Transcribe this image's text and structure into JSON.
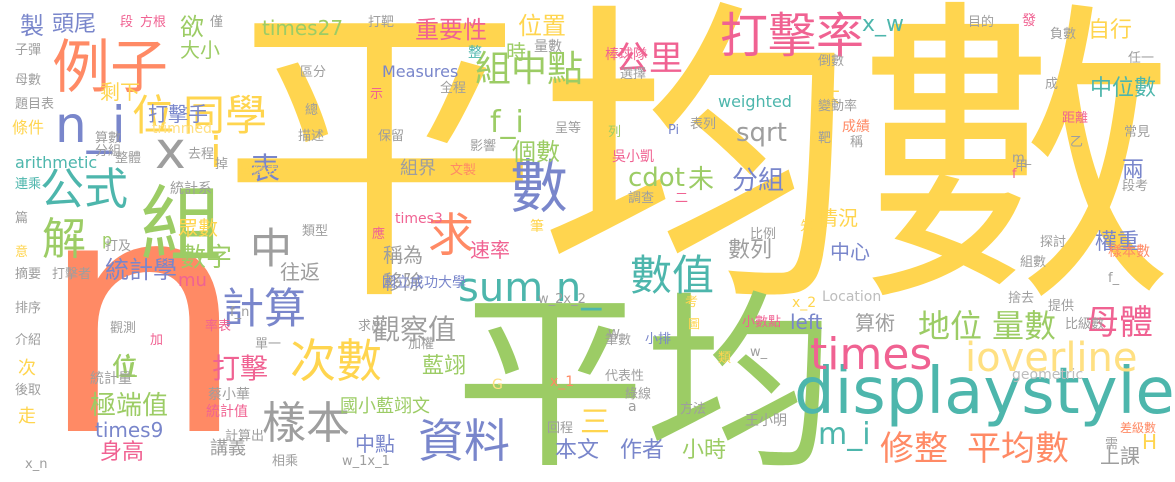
{
  "words": [
    {
      "text": "平均數",
      "color": "#FFD54F"
    },
    {
      "text": "n",
      "color": "#FF8A65"
    },
    {
      "text": "平均",
      "color": "#9CCC65"
    },
    {
      "text": "displaystyle",
      "color": "#4DB6AC"
    },
    {
      "text": "組",
      "color": "#9CCC65"
    },
    {
      "text": "例子",
      "color": "#FF8A65"
    },
    {
      "text": "打擊率",
      "color": "#F06292"
    },
    {
      "text": "n_i",
      "color": "#7986CB"
    },
    {
      "text": "x",
      "color": "#9E9E9E"
    },
    {
      "text": "i",
      "color": "#FFD54F"
    },
    {
      "text": "位",
      "color": "#FFD54F"
    },
    {
      "text": "同學",
      "color": "#FFD54F"
    },
    {
      "text": "數",
      "color": "#7986CB"
    },
    {
      "text": "公式",
      "color": "#4DB6AC"
    },
    {
      "text": "解",
      "color": "#9CCC65"
    },
    {
      "text": "中",
      "color": "#9E9E9E"
    },
    {
      "text": "求",
      "color": "#FF8A65"
    },
    {
      "text": "sum n_",
      "color": "#4DB6AC"
    },
    {
      "text": "數值",
      "color": "#4DB6AC"
    },
    {
      "text": "計算",
      "color": "#7986CB"
    },
    {
      "text": "次數",
      "color": "#FFD54F"
    },
    {
      "text": "times",
      "color": "#F06292"
    },
    {
      "text": "ioverline",
      "color": "#FFE082"
    },
    {
      "text": "樣本",
      "color": "#9E9E9E"
    },
    {
      "text": "資料",
      "color": "#7986CB"
    },
    {
      "text": "地位",
      "color": "#9CCC65"
    },
    {
      "text": "量數",
      "color": "#9CCC65"
    },
    {
      "text": "母體",
      "color": "#F06292"
    },
    {
      "text": "修整",
      "color": "#FF8A65"
    },
    {
      "text": "平均數",
      "color": "#FF8A65"
    },
    {
      "text": "m_i",
      "color": "#4DB6AC"
    },
    {
      "text": "公里",
      "color": "#F06292"
    },
    {
      "text": "組中點",
      "color": "#9CCC65"
    },
    {
      "text": "f_i",
      "color": "#9CCC65"
    },
    {
      "text": "個數",
      "color": "#9CCC65"
    },
    {
      "text": "sqrt",
      "color": "#9E9E9E"
    },
    {
      "text": "cdot",
      "color": "#9CCC65"
    },
    {
      "text": "未",
      "color": "#9CCC65"
    },
    {
      "text": "分組",
      "color": "#7986CB"
    },
    {
      "text": "表",
      "color": "#7986CB"
    },
    {
      "text": "觀察值",
      "color": "#9E9E9E"
    },
    {
      "text": "打擊手",
      "color": "#7986CB"
    },
    {
      "text": "統計學",
      "color": "#7986CB"
    },
    {
      "text": "數字",
      "color": "#9CCC65"
    },
    {
      "text": "打擊",
      "color": "#F06292"
    },
    {
      "text": "位",
      "color": "#9CCC65"
    },
    {
      "text": "極端值",
      "color": "#9CCC65"
    },
    {
      "text": "times9",
      "color": "#7986CB"
    },
    {
      "text": "身高",
      "color": "#F06292"
    },
    {
      "text": "times27",
      "color": "#9CCC65"
    },
    {
      "text": "重要性",
      "color": "#F06292"
    },
    {
      "text": "位置",
      "color": "#FFD54F"
    },
    {
      "text": "中位數",
      "color": "#4DB6AC"
    },
    {
      "text": "自行",
      "color": "#FFD54F"
    },
    {
      "text": "x_w",
      "color": "#4DB6AC"
    },
    {
      "text": "藍翊",
      "color": "#9CCC65"
    },
    {
      "text": "國小藍翊文",
      "color": "#9CCC65"
    },
    {
      "text": "中點",
      "color": "#7986CB"
    },
    {
      "text": "三",
      "color": "#FFD54F"
    },
    {
      "text": "本文",
      "color": "#7986CB"
    },
    {
      "text": "作者",
      "color": "#7986CB"
    },
    {
      "text": "小時",
      "color": "#9CCC65"
    },
    {
      "text": "left",
      "color": "#7986CB"
    },
    {
      "text": "中心",
      "color": "#7986CB"
    },
    {
      "text": "權重",
      "color": "#7986CB"
    },
    {
      "text": "數列",
      "color": "#9E9E9E"
    },
    {
      "text": "兩",
      "color": "#7986CB"
    },
    {
      "text": "頭尾",
      "color": "#7986CB"
    },
    {
      "text": "製",
      "color": "#7986CB"
    },
    {
      "text": "欲",
      "color": "#9CCC65"
    },
    {
      "text": "時",
      "color": "#9CCC65"
    },
    {
      "text": "大小",
      "color": "#9CCC65"
    },
    {
      "text": "剩下",
      "color": "#FFD54F"
    },
    {
      "text": "眾數",
      "color": "#FFD54F"
    },
    {
      "text": "往返",
      "color": "#9E9E9E"
    },
    {
      "text": "稱為",
      "color": "#9E9E9E"
    },
    {
      "text": "速率",
      "color": "#F06292"
    },
    {
      "text": "移除",
      "color": "#9E9E9E"
    },
    {
      "text": "算術",
      "color": "#9E9E9E"
    },
    {
      "text": "情況",
      "color": "#FFD54F"
    },
    {
      "text": "組界",
      "color": "#9E9E9E"
    },
    {
      "text": "太",
      "color": "#FFD54F"
    },
    {
      "text": "mu",
      "color": "#F06292"
    },
    {
      "text": "p",
      "color": "#9CCC65"
    },
    {
      "text": "講義",
      "color": "#9E9E9E"
    },
    {
      "text": "上課",
      "color": "#9E9E9E"
    },
    {
      "text": "H",
      "color": "#FFD54F"
    },
    {
      "text": "位",
      "color": "#9CCC65"
    },
    {
      "text": "次",
      "color": "#FFD54F"
    },
    {
      "text": "走",
      "color": "#FFD54F"
    },
    {
      "text": "times3",
      "color": "#F06292"
    },
    {
      "text": "Measures",
      "color": "#7986CB"
    },
    {
      "text": "weighted",
      "color": "#4DB6AC"
    },
    {
      "text": "trimmed",
      "color": "#FFE082"
    },
    {
      "text": "arithmetic",
      "color": "#4DB6AC"
    },
    {
      "text": "Location",
      "color": "#BDBDBD"
    },
    {
      "text": "geometric",
      "color": "#BDBDBD"
    },
    {
      "text": "吳小凱",
      "color": "#F06292"
    },
    {
      "text": "棒球隊",
      "color": "#F06292"
    },
    {
      "text": "國立成功大學",
      "color": "#7986CB"
    },
    {
      "text": "蔡小華",
      "color": "#9E9E9E"
    },
    {
      "text": "王小明",
      "color": "#9E9E9E"
    },
    {
      "text": "成績",
      "color": "#FF8A65"
    },
    {
      "text": "成績表",
      "color": "#FFD54F"
    },
    {
      "text": "統計系",
      "color": "#9E9E9E"
    },
    {
      "text": "統計量",
      "color": "#9E9E9E"
    },
    {
      "text": "統計值",
      "color": "#F06292"
    },
    {
      "text": "樣本數",
      "color": "#FF8A65"
    },
    {
      "text": "變動率",
      "color": "#9E9E9E"
    },
    {
      "text": "倒數",
      "color": "#9E9E9E"
    },
    {
      "text": "選擇",
      "color": "#9E9E9E"
    },
    {
      "text": "呈等",
      "color": "#9E9E9E"
    },
    {
      "text": "表列",
      "color": "#9E9E9E"
    },
    {
      "text": "影響",
      "color": "#9E9E9E"
    },
    {
      "text": "文製",
      "color": "#FF8A65"
    },
    {
      "text": "保留",
      "color": "#9E9E9E"
    },
    {
      "text": "描述",
      "color": "#9E9E9E"
    },
    {
      "text": "總",
      "color": "#9E9E9E"
    },
    {
      "text": "區分",
      "color": "#9E9E9E"
    },
    {
      "text": "示",
      "color": "#F06292"
    },
    {
      "text": "全程",
      "color": "#9E9E9E"
    },
    {
      "text": "整",
      "color": "#4DB6AC"
    },
    {
      "text": "量數",
      "color": "#9E9E9E"
    },
    {
      "text": "打靶",
      "color": "#9E9E9E"
    },
    {
      "text": "段",
      "color": "#F06292"
    },
    {
      "text": "方根",
      "color": "#F06292"
    },
    {
      "text": "僅",
      "color": "#9E9E9E"
    },
    {
      "text": "子彈",
      "color": "#9E9E9E"
    },
    {
      "text": "母數",
      "color": "#9E9E9E"
    },
    {
      "text": "題目表",
      "color": "#9E9E9E"
    },
    {
      "text": "條件",
      "color": "#FFD54F"
    },
    {
      "text": "連乘",
      "color": "#4DB6AC"
    },
    {
      "text": "篇",
      "color": "#9E9E9E"
    },
    {
      "text": "意",
      "color": "#FFD54F"
    },
    {
      "text": "摘要",
      "color": "#9E9E9E"
    },
    {
      "text": "排序",
      "color": "#9E9E9E"
    },
    {
      "text": "介紹",
      "color": "#9E9E9E"
    },
    {
      "text": "後取",
      "color": "#9E9E9E"
    },
    {
      "text": "x_n",
      "color": "#9E9E9E"
    },
    {
      "text": "算數",
      "color": "#9E9E9E"
    },
    {
      "text": "分組",
      "color": "#9E9E9E"
    },
    {
      "text": "整體",
      "color": "#9E9E9E"
    },
    {
      "text": "去程",
      "color": "#9E9E9E"
    },
    {
      "text": "掉",
      "color": "#9E9E9E"
    },
    {
      "text": "打及",
      "color": "#9E9E9E"
    },
    {
      "text": "打擊者",
      "color": "#9E9E9E"
    },
    {
      "text": "類型",
      "color": "#9E9E9E"
    },
    {
      "text": "應",
      "color": "#F06292"
    },
    {
      "text": "調查",
      "color": "#9E9E9E"
    },
    {
      "text": "二",
      "color": "#F06292"
    },
    {
      "text": "筆",
      "color": "#FFD54F"
    },
    {
      "text": "比例",
      "color": "#9E9E9E"
    },
    {
      "text": "先",
      "color": "#FFD54F"
    },
    {
      "text": "探討",
      "color": "#9E9E9E"
    },
    {
      "text": "組數",
      "color": "#9E9E9E"
    },
    {
      "text": "捨去",
      "color": "#9E9E9E"
    },
    {
      "text": "提供",
      "color": "#9E9E9E"
    },
    {
      "text": "比級數",
      "color": "#9E9E9E"
    },
    {
      "text": "差級數",
      "color": "#FF8A65"
    },
    {
      "text": "需",
      "color": "#9E9E9E"
    },
    {
      "text": "段考",
      "color": "#9E9E9E"
    },
    {
      "text": "常見",
      "color": "#9E9E9E"
    },
    {
      "text": "距離",
      "color": "#F06292"
    },
    {
      "text": "負數",
      "color": "#9E9E9E"
    },
    {
      "text": "任一",
      "color": "#9E9E9E"
    },
    {
      "text": "目的",
      "color": "#9E9E9E"
    },
    {
      "text": "發",
      "color": "#F06292"
    },
    {
      "text": "成",
      "color": "#9E9E9E"
    },
    {
      "text": "稱",
      "color": "#9E9E9E"
    },
    {
      "text": "靶",
      "color": "#9E9E9E"
    },
    {
      "text": "乙",
      "color": "#9E9E9E"
    },
    {
      "text": "甲",
      "color": "#9E9E9E"
    },
    {
      "text": "m_",
      "color": "#9E9E9E"
    },
    {
      "text": "f",
      "color": "#F06292"
    },
    {
      "text": "f_",
      "color": "#9E9E9E"
    },
    {
      "text": "x_2",
      "color": "#FFD54F"
    },
    {
      "text": "Pi",
      "color": "#7986CB"
    },
    {
      "text": "列",
      "color": "#9CCC65"
    },
    {
      "text": "率表",
      "color": "#F06292"
    },
    {
      "text": "f_n",
      "color": "#9E9E9E"
    },
    {
      "text": "w_2x_2",
      "color": "#9E9E9E"
    },
    {
      "text": "w_1x_1",
      "color": "#9E9E9E"
    },
    {
      "text": "求出",
      "color": "#9E9E9E"
    },
    {
      "text": "觀測",
      "color": "#9E9E9E"
    },
    {
      "text": "單一",
      "color": "#9E9E9E"
    },
    {
      "text": "加",
      "color": "#F06292"
    },
    {
      "text": "加權",
      "color": "#9E9E9E"
    },
    {
      "text": "計算出",
      "color": "#9E9E9E"
    },
    {
      "text": "相乘",
      "color": "#9E9E9E"
    },
    {
      "text": "回程",
      "color": "#9E9E9E"
    },
    {
      "text": "綠線",
      "color": "#9E9E9E"
    },
    {
      "text": "方法",
      "color": "#9E9E9E"
    },
    {
      "text": "代表性",
      "color": "#9E9E9E"
    },
    {
      "text": "x_1",
      "color": "#FF8A65"
    },
    {
      "text": "a",
      "color": "#9E9E9E"
    },
    {
      "text": "G",
      "color": "#FFE082"
    },
    {
      "text": "筆數",
      "color": "#9E9E9E"
    },
    {
      "text": "考",
      "color": "#FFD54F"
    },
    {
      "text": "小排",
      "color": "#7986CB"
    },
    {
      "text": "W",
      "color": "#9E9E9E"
    },
    {
      "text": "小數點",
      "color": "#F06292"
    },
    {
      "text": "類",
      "color": "#FFD54F"
    },
    {
      "text": "w_",
      "color": "#9E9E9E"
    },
    {
      "text": "圖",
      "color": "#FFD54F"
    }
  ]
}
